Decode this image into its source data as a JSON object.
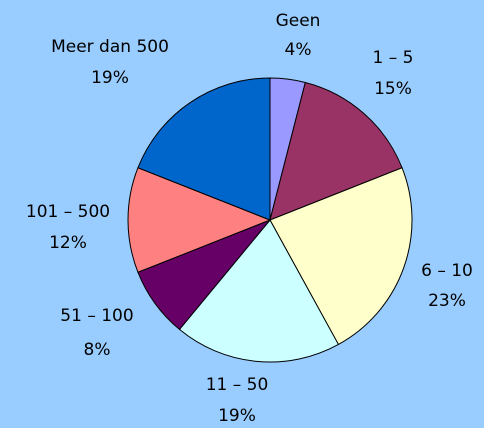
{
  "chart_data": {
    "type": "pie",
    "categories": [
      "Geen",
      "1 – 5",
      "6 – 10",
      "11 – 50",
      "51 – 100",
      "101 – 500",
      "Meer dan 500"
    ],
    "values": [
      4,
      15,
      23,
      19,
      8,
      12,
      19
    ],
    "value_labels": [
      "4%",
      "15%",
      "23%",
      "19%",
      "8%",
      "12%",
      "19%"
    ],
    "colors": [
      "#9999ff",
      "#993366",
      "#ffffcc",
      "#ccffff",
      "#660066",
      "#ff8080",
      "#0066cc"
    ]
  }
}
